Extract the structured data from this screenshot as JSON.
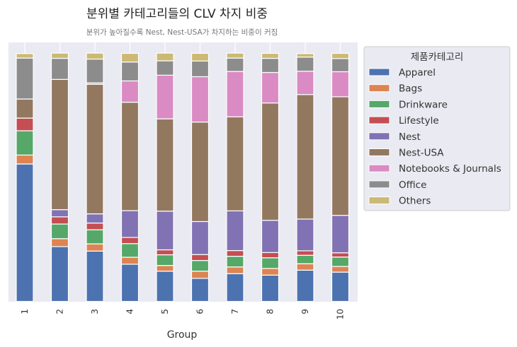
{
  "chart_data": {
    "type": "bar",
    "stacked": true,
    "normalized": true,
    "title": "분위별 카테고리들의 CLV 차지 비중",
    "subtitle": "분위가 높아질수록 Nest, Nest-USA가 차지하는 비중이 커짐",
    "xlabel": "Group",
    "ylabel": "",
    "ylim": [
      0,
      1
    ],
    "grid": true,
    "legend": {
      "title": "제품카테고리",
      "placement": "outside-right"
    },
    "categories": [
      "1",
      "2",
      "3",
      "4",
      "5",
      "6",
      "7",
      "8",
      "9",
      "10"
    ],
    "series": [
      {
        "name": "Apparel",
        "color": "#4c72b0",
        "values": [
          0.554,
          0.221,
          0.203,
          0.15,
          0.122,
          0.093,
          0.112,
          0.106,
          0.126,
          0.118
        ]
      },
      {
        "name": "Bags",
        "color": "#dd8452",
        "values": [
          0.036,
          0.032,
          0.029,
          0.028,
          0.023,
          0.029,
          0.027,
          0.027,
          0.026,
          0.023
        ]
      },
      {
        "name": "Drinkware",
        "color": "#55a868",
        "values": [
          0.098,
          0.059,
          0.057,
          0.055,
          0.043,
          0.043,
          0.043,
          0.043,
          0.034,
          0.038
        ]
      },
      {
        "name": "Lifestyle",
        "color": "#c44e52",
        "values": [
          0.051,
          0.029,
          0.027,
          0.025,
          0.02,
          0.024,
          0.023,
          0.021,
          0.018,
          0.017
        ]
      },
      {
        "name": "Nest",
        "color": "#8172b3",
        "values": [
          0.0,
          0.029,
          0.037,
          0.108,
          0.156,
          0.133,
          0.16,
          0.13,
          0.128,
          0.151
        ]
      },
      {
        "name": "Nest-USA",
        "color": "#937860",
        "values": [
          0.077,
          0.525,
          0.522,
          0.437,
          0.372,
          0.401,
          0.379,
          0.473,
          0.502,
          0.478
        ]
      },
      {
        "name": "Notebooks & Journals",
        "color": "#da8bc3",
        "values": [
          0.0,
          0.0,
          0.006,
          0.086,
          0.176,
          0.183,
          0.183,
          0.123,
          0.094,
          0.101
        ]
      },
      {
        "name": "Office",
        "color": "#8c8c8c",
        "values": [
          0.165,
          0.085,
          0.096,
          0.076,
          0.058,
          0.063,
          0.054,
          0.057,
          0.057,
          0.053
        ]
      },
      {
        "name": "Others",
        "color": "#ccb974",
        "values": [
          0.018,
          0.021,
          0.024,
          0.035,
          0.031,
          0.031,
          0.02,
          0.02,
          0.014,
          0.021
        ]
      }
    ]
  }
}
